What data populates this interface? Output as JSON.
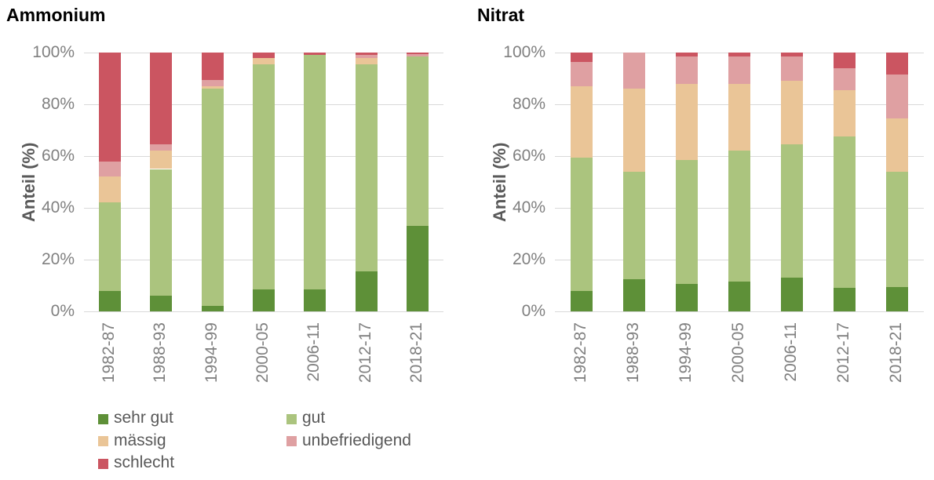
{
  "palette": {
    "sehr_gut": "#5e9038",
    "gut": "#abc47e",
    "maessig": "#eac597",
    "unbefriedigend": "#dfa0a2",
    "schlecht": "#cb5561"
  },
  "axis": {
    "grid_color": "#d9d9d9",
    "tick_color": "#808080",
    "label_color": "#595959"
  },
  "legend": {
    "items": [
      {
        "key": "sehr-gut",
        "label": "sehr gut",
        "color": "#5e9038"
      },
      {
        "key": "gut",
        "label": "gut",
        "color": "#abc47e"
      },
      {
        "key": "maessig",
        "label": "mässig",
        "color": "#eac597"
      },
      {
        "key": "unbefriedigend",
        "label": "unbefriedigend",
        "color": "#dfa0a2"
      },
      {
        "key": "schlecht",
        "label": "schlecht",
        "color": "#cb5561"
      }
    ]
  },
  "chart_data": [
    {
      "type": "bar",
      "stacked": true,
      "title": "Ammonium",
      "ylabel": "Anteil (%)",
      "xlabel": "",
      "ylim": [
        0,
        100
      ],
      "grid": true,
      "yticks": [
        0,
        20,
        40,
        60,
        80,
        100
      ],
      "ytick_labels": [
        "0%",
        "20%",
        "40%",
        "60%",
        "80%",
        "100%"
      ],
      "categories": [
        "1982-87",
        "1988-93",
        "1994-99",
        "2000-05",
        "2006-11",
        "2012-17",
        "2018-21"
      ],
      "series": [
        {
          "key": "sehr-gut",
          "name": "sehr gut",
          "color": "#5e9038",
          "values": [
            8,
            6,
            2,
            8.5,
            8.5,
            15.5,
            33
          ]
        },
        {
          "key": "gut",
          "name": "gut",
          "color": "#abc47e",
          "values": [
            34,
            49,
            84,
            87,
            90.5,
            80,
            65.5
          ]
        },
        {
          "key": "maessig",
          "name": "mässig",
          "color": "#eac597",
          "values": [
            10,
            7,
            1,
            2.5,
            0,
            2.5,
            0
          ]
        },
        {
          "key": "unbefriedigend",
          "name": "unbefriedigend",
          "color": "#dfa0a2",
          "values": [
            6,
            2.5,
            2.5,
            0,
            0,
            1,
            1
          ]
        },
        {
          "key": "schlecht",
          "name": "schlecht",
          "color": "#cb5561",
          "values": [
            42,
            35.5,
            10.5,
            2,
            1,
            1,
            0.5
          ]
        }
      ]
    },
    {
      "type": "bar",
      "stacked": true,
      "title": "Nitrat",
      "ylabel": "Anteil (%)",
      "xlabel": "",
      "ylim": [
        0,
        100
      ],
      "grid": true,
      "yticks": [
        0,
        20,
        40,
        60,
        80,
        100
      ],
      "ytick_labels": [
        "0%",
        "20%",
        "40%",
        "60%",
        "80%",
        "100%"
      ],
      "categories": [
        "1982-87",
        "1988-93",
        "1994-99",
        "2000-05",
        "2006-11",
        "2012-17",
        "2018-21"
      ],
      "series": [
        {
          "key": "sehr-gut",
          "name": "sehr gut",
          "color": "#5e9038",
          "values": [
            8,
            12.5,
            10.5,
            11.5,
            13,
            9,
            9.5
          ]
        },
        {
          "key": "gut",
          "name": "gut",
          "color": "#abc47e",
          "values": [
            51.5,
            41.5,
            48,
            50.5,
            51.5,
            58.5,
            44.5
          ]
        },
        {
          "key": "maessig",
          "name": "mässig",
          "color": "#eac597",
          "values": [
            27.5,
            32,
            29.5,
            26,
            24.5,
            18,
            20.5
          ]
        },
        {
          "key": "unbefriedigend",
          "name": "unbefriedigend",
          "color": "#dfa0a2",
          "values": [
            9.5,
            14,
            10.5,
            10.5,
            9.5,
            8.5,
            17
          ]
        },
        {
          "key": "schlecht",
          "name": "schlecht",
          "color": "#cb5561",
          "values": [
            3.5,
            0,
            1.5,
            1.5,
            1.5,
            6,
            8.5
          ]
        }
      ]
    }
  ]
}
